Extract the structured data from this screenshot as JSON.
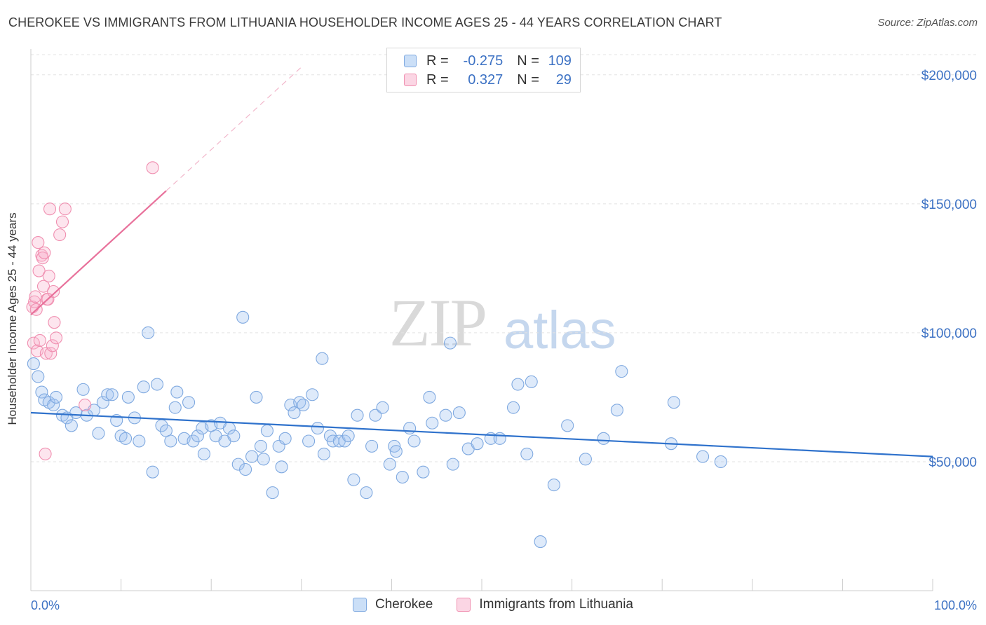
{
  "title": "CHEROKEE VS IMMIGRANTS FROM LITHUANIA HOUSEHOLDER INCOME AGES 25 - 44 YEARS CORRELATION CHART",
  "source": "Source: ZipAtlas.com",
  "watermark": {
    "zip": "ZIP",
    "atlas": "atlas"
  },
  "legend": {
    "rows": [
      {
        "r_label": "R =",
        "r_value": "-0.275",
        "n_label": "N =",
        "n_value": "109"
      },
      {
        "r_label": "R =",
        "r_value": "0.327",
        "n_label": "N =",
        "n_value": "29"
      }
    ]
  },
  "colors": {
    "blue": "#7fa9e0",
    "blue_fill": "rgba(160,196,240,0.35)",
    "blue_line": "#2f72cc",
    "pink": "#f08fb0",
    "pink_fill": "rgba(248,180,205,0.35)",
    "pink_line": "#e8719b"
  },
  "chart_data": {
    "type": "scatter",
    "title": "CHEROKEE VS IMMIGRANTS FROM LITHUANIA HOUSEHOLDER INCOME AGES 25 - 44 YEARS CORRELATION CHART",
    "xlabel": "",
    "ylabel": "Householder Income Ages 25 - 44 years",
    "x_tick_labels": [
      "0.0%",
      "100.0%"
    ],
    "y_tick_labels": [
      "$50,000",
      "$100,000",
      "$150,000",
      "$200,000"
    ],
    "y_ticks": [
      50000,
      100000,
      150000,
      200000
    ],
    "xlim": [
      0,
      100
    ],
    "ylim": [
      0,
      210000
    ],
    "series": [
      {
        "name": "Cherokee",
        "color": "blue",
        "trend": {
          "x0": 0,
          "y0": 69000,
          "x1": 100,
          "y1": 52000,
          "dashed_extension": false
        },
        "points": [
          [
            0.3,
            88000
          ],
          [
            0.8,
            83000
          ],
          [
            1.2,
            77000
          ],
          [
            1.5,
            74000
          ],
          [
            2.0,
            73000
          ],
          [
            2.5,
            72000
          ],
          [
            2.8,
            75000
          ],
          [
            3.5,
            68000
          ],
          [
            4.0,
            67000
          ],
          [
            4.5,
            64000
          ],
          [
            5.0,
            69000
          ],
          [
            5.8,
            78000
          ],
          [
            6.2,
            68000
          ],
          [
            7.0,
            70000
          ],
          [
            7.5,
            61000
          ],
          [
            8.0,
            73000
          ],
          [
            8.5,
            76000
          ],
          [
            9.0,
            76000
          ],
          [
            9.5,
            66000
          ],
          [
            10.0,
            60000
          ],
          [
            10.5,
            59000
          ],
          [
            10.8,
            75000
          ],
          [
            11.5,
            67000
          ],
          [
            12.0,
            58000
          ],
          [
            12.5,
            79000
          ],
          [
            13.0,
            100000
          ],
          [
            13.5,
            46000
          ],
          [
            14.0,
            80000
          ],
          [
            14.5,
            64000
          ],
          [
            15.0,
            62000
          ],
          [
            15.5,
            58000
          ],
          [
            16.0,
            71000
          ],
          [
            16.2,
            77000
          ],
          [
            17.0,
            59000
          ],
          [
            17.5,
            73000
          ],
          [
            18.0,
            58000
          ],
          [
            18.5,
            60000
          ],
          [
            19.0,
            63000
          ],
          [
            19.2,
            53000
          ],
          [
            20.0,
            64000
          ],
          [
            20.5,
            60000
          ],
          [
            21.0,
            65000
          ],
          [
            21.5,
            58000
          ],
          [
            22.0,
            63000
          ],
          [
            22.5,
            60000
          ],
          [
            23.0,
            49000
          ],
          [
            23.5,
            106000
          ],
          [
            23.8,
            47000
          ],
          [
            24.5,
            52000
          ],
          [
            25.0,
            75000
          ],
          [
            25.5,
            56000
          ],
          [
            25.8,
            51000
          ],
          [
            26.2,
            62000
          ],
          [
            26.8,
            38000
          ],
          [
            27.5,
            56000
          ],
          [
            27.8,
            48000
          ],
          [
            28.2,
            59000
          ],
          [
            28.8,
            72000
          ],
          [
            29.2,
            69000
          ],
          [
            29.8,
            73000
          ],
          [
            30.2,
            72000
          ],
          [
            30.8,
            58000
          ],
          [
            31.2,
            76000
          ],
          [
            31.8,
            63000
          ],
          [
            32.3,
            90000
          ],
          [
            32.5,
            53000
          ],
          [
            33.2,
            60000
          ],
          [
            33.5,
            58000
          ],
          [
            34.2,
            58000
          ],
          [
            34.8,
            58000
          ],
          [
            35.2,
            60000
          ],
          [
            35.8,
            43000
          ],
          [
            36.2,
            68000
          ],
          [
            37.2,
            38000
          ],
          [
            37.8,
            56000
          ],
          [
            38.2,
            68000
          ],
          [
            39.0,
            71000
          ],
          [
            39.8,
            49000
          ],
          [
            40.3,
            56000
          ],
          [
            40.5,
            54000
          ],
          [
            41.2,
            44000
          ],
          [
            42.0,
            63000
          ],
          [
            42.5,
            58000
          ],
          [
            43.5,
            46000
          ],
          [
            44.2,
            75000
          ],
          [
            44.5,
            65000
          ],
          [
            46.0,
            68000
          ],
          [
            46.5,
            96000
          ],
          [
            46.8,
            49000
          ],
          [
            47.5,
            69000
          ],
          [
            48.5,
            55000
          ],
          [
            49.5,
            57000
          ],
          [
            51.0,
            59000
          ],
          [
            52.0,
            59000
          ],
          [
            53.5,
            71000
          ],
          [
            54.0,
            80000
          ],
          [
            55.0,
            53000
          ],
          [
            55.5,
            81000
          ],
          [
            58.0,
            41000
          ],
          [
            56.5,
            19000
          ],
          [
            59.5,
            64000
          ],
          [
            61.5,
            51000
          ],
          [
            63.5,
            59000
          ],
          [
            65.0,
            70000
          ],
          [
            65.5,
            85000
          ],
          [
            71.0,
            57000
          ],
          [
            74.5,
            52000
          ],
          [
            76.5,
            50000
          ],
          [
            71.3,
            73000
          ]
        ]
      },
      {
        "name": "Immigrants from Lithuania",
        "color": "pink",
        "trend": {
          "x0": 0,
          "y0": 107000,
          "x1": 15,
          "y1": 155000,
          "x_ext": 30,
          "y_ext": 203000,
          "dashed_extension": true
        },
        "points": [
          [
            0.2,
            110000
          ],
          [
            0.3,
            96000
          ],
          [
            0.4,
            112000
          ],
          [
            0.5,
            114000
          ],
          [
            0.6,
            109000
          ],
          [
            0.7,
            93000
          ],
          [
            0.8,
            135000
          ],
          [
            0.9,
            124000
          ],
          [
            1.0,
            97000
          ],
          [
            1.2,
            130000
          ],
          [
            1.3,
            129000
          ],
          [
            1.4,
            118000
          ],
          [
            1.5,
            131000
          ],
          [
            1.6,
            53000
          ],
          [
            1.7,
            92000
          ],
          [
            1.8,
            113000
          ],
          [
            1.9,
            113000
          ],
          [
            2.0,
            122000
          ],
          [
            2.1,
            148000
          ],
          [
            2.2,
            92000
          ],
          [
            2.4,
            95000
          ],
          [
            2.5,
            116000
          ],
          [
            2.6,
            104000
          ],
          [
            2.8,
            98000
          ],
          [
            3.2,
            138000
          ],
          [
            3.5,
            143000
          ],
          [
            3.8,
            148000
          ],
          [
            6.0,
            72000
          ],
          [
            13.5,
            164000
          ]
        ]
      }
    ]
  }
}
